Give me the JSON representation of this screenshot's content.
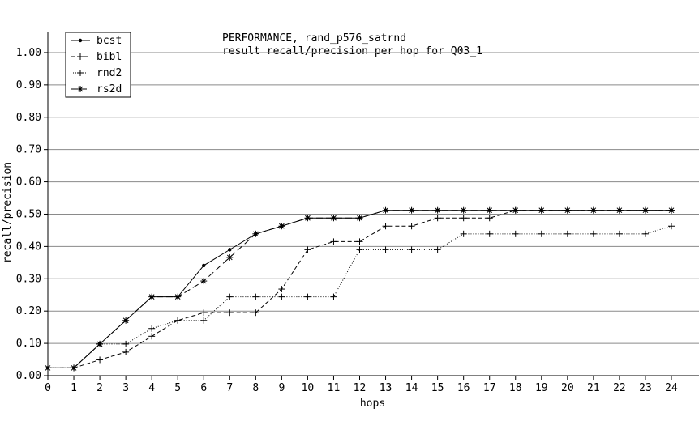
{
  "chart_data": {
    "type": "line",
    "title": "PERFORMANCE, rand_p576_satrnd",
    "subtitle": "result recall/precision per hop for Q03_1",
    "xlabel": "hops",
    "ylabel": "recall/precision",
    "xlim": [
      0,
      24
    ],
    "ylim": [
      0,
      1.0
    ],
    "x_ticks": [
      "0",
      "1",
      "2",
      "3",
      "4",
      "5",
      "6",
      "7",
      "8",
      "9",
      "10",
      "11",
      "12",
      "13",
      "14",
      "15",
      "16",
      "17",
      "18",
      "19",
      "20",
      "21",
      "22",
      "23",
      "24"
    ],
    "y_ticks": [
      "0.00",
      "0.10",
      "0.20",
      "0.30",
      "0.40",
      "0.50",
      "0.60",
      "0.70",
      "0.80",
      "0.90",
      "1.00"
    ],
    "grid": "horizontal",
    "legend_position": "top-left",
    "x": [
      0,
      1,
      2,
      3,
      4,
      5,
      6,
      7,
      8,
      9,
      10,
      11,
      12,
      13,
      14,
      15,
      16,
      17,
      18,
      19,
      20,
      21,
      22,
      23,
      24
    ],
    "series": [
      {
        "name": "bcst",
        "style": "solid-dot",
        "values": [
          0.024,
          0.024,
          0.098,
          0.171,
          0.244,
          0.244,
          0.341,
          0.39,
          0.439,
          0.463,
          0.488,
          0.488,
          0.488,
          0.512,
          0.512,
          0.512,
          0.512,
          0.512,
          0.512,
          0.512,
          0.512,
          0.512,
          0.512,
          0.512,
          0.512
        ]
      },
      {
        "name": "bibl",
        "style": "dashed-plus",
        "values": [
          0.024,
          0.024,
          0.049,
          0.073,
          0.122,
          0.171,
          0.195,
          0.195,
          0.195,
          0.268,
          0.39,
          0.415,
          0.415,
          0.463,
          0.463,
          0.488,
          0.488,
          0.488,
          0.512,
          0.512,
          0.512,
          0.512,
          0.512,
          0.512,
          0.512
        ]
      },
      {
        "name": "rnd2",
        "style": "dotted-plus",
        "values": [
          0.024,
          0.024,
          0.098,
          0.098,
          0.146,
          0.171,
          0.171,
          0.244,
          0.244,
          0.244,
          0.244,
          0.244,
          0.39,
          0.39,
          0.39,
          0.39,
          0.439,
          0.439,
          0.439,
          0.439,
          0.439,
          0.439,
          0.439,
          0.439,
          0.463
        ]
      },
      {
        "name": "rs2d",
        "style": "longdash-star",
        "values": [
          0.024,
          0.024,
          0.098,
          0.171,
          0.244,
          0.244,
          0.293,
          0.366,
          0.439,
          0.463,
          0.488,
          0.488,
          0.488,
          0.512,
          0.512,
          0.512,
          0.512,
          0.512,
          0.512,
          0.512,
          0.512,
          0.512,
          0.512,
          0.512,
          0.512
        ]
      }
    ]
  }
}
